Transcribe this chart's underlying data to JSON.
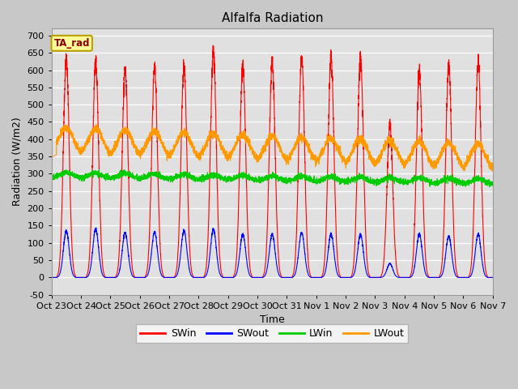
{
  "title": "Alfalfa Radiation",
  "xlabel": "Time",
  "ylabel": "Radiation (W/m2)",
  "ylim": [
    -50,
    720
  ],
  "background_color": "#c8c8c8",
  "plot_bg_color": "#e0e0e0",
  "legend_items": [
    "SWin",
    "SWout",
    "LWin",
    "LWout"
  ],
  "legend_colors": [
    "#ff0000",
    "#0000ff",
    "#00cc00",
    "#ff9900"
  ],
  "tag_label": "TA_rad",
  "tag_bg": "#ffff99",
  "tag_border": "#b8a000",
  "tag_text_color": "#8b0000",
  "num_days": 15,
  "tick_labels": [
    "Oct 23",
    "Oct 24",
    "Oct 25",
    "Oct 26",
    "Oct 27",
    "Oct 28",
    "Oct 29",
    "Oct 30",
    "Oct 31",
    "Nov 1",
    "Nov 2",
    "Nov 3",
    "Nov 4",
    "Nov 5",
    "Nov 6",
    "Nov 7"
  ]
}
